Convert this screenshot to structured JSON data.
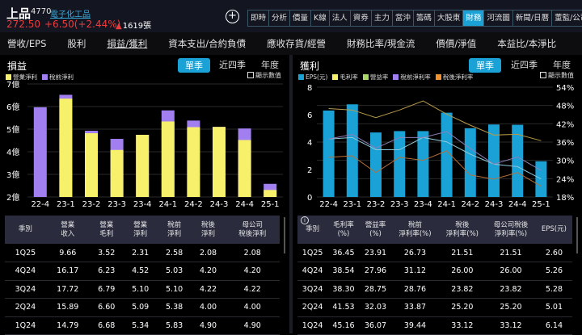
{
  "header": {
    "name": "上品",
    "code": "4770",
    "industry": "電子化工品",
    "price": "272.50",
    "change": "+6.50(+2.44%)",
    "volume": "1619張",
    "plus_icon": "add-icon"
  },
  "tabs": [
    {
      "label": "即時"
    },
    {
      "label": "分析"
    },
    {
      "label": "價量"
    },
    {
      "label": "K線"
    },
    {
      "label": "法人"
    },
    {
      "label": "資券"
    },
    {
      "label": "主力"
    },
    {
      "label": "當沖"
    },
    {
      "label": "籌碼"
    },
    {
      "label": "大股東"
    },
    {
      "label": "財務",
      "active": true
    },
    {
      "label": "河流圖"
    },
    {
      "label": "新聞/日曆"
    },
    {
      "label": "董監/公司"
    }
  ],
  "subtabs": [
    {
      "label": "營收/EPS"
    },
    {
      "label": "股利"
    },
    {
      "label": "損益/獲利",
      "active": true
    },
    {
      "label": "資本支出/合約負債"
    },
    {
      "label": "應收存貨/經營"
    },
    {
      "label": "財務比率/現金流"
    },
    {
      "label": "價價/淨值"
    },
    {
      "label": "本益比/本淨比"
    }
  ],
  "left": {
    "title": "損益",
    "periods": [
      "單季",
      "近四季",
      "年度"
    ],
    "show_values": "顯示數值",
    "legend": [
      {
        "label": "營業淨利",
        "color": "#f7f06a"
      },
      {
        "label": "稅前淨利",
        "color": "#a17ff0"
      }
    ],
    "columns": [
      "季別",
      "營業\n收入",
      "營業\n毛利",
      "營業\n淨利",
      "稅前\n淨利",
      "稅後\n淨利",
      "母公司\n稅後淨利"
    ],
    "rows": [
      [
        "1Q25",
        "9.66",
        "3.52",
        "2.31",
        "2.58",
        "2.08",
        "2.08"
      ],
      [
        "4Q24",
        "16.17",
        "6.23",
        "4.52",
        "5.03",
        "4.20",
        "4.20"
      ],
      [
        "3Q24",
        "17.72",
        "6.79",
        "5.10",
        "5.10",
        "4.22",
        "4.22"
      ],
      [
        "2Q24",
        "15.89",
        "6.60",
        "5.09",
        "5.38",
        "4.00",
        "4.00"
      ],
      [
        "1Q24",
        "14.79",
        "6.68",
        "5.34",
        "5.83",
        "4.90",
        "4.90"
      ]
    ]
  },
  "right": {
    "title": "獲利",
    "periods": [
      "單季",
      "近四季",
      "年度"
    ],
    "show_values": "顯示數值",
    "legend": [
      {
        "label": "EPS(元)",
        "color": "#1aa1d6"
      },
      {
        "label": "毛利率",
        "color": "#f7f06a"
      },
      {
        "label": "營益率",
        "color": "#a8d66a"
      },
      {
        "label": "稅前淨利率",
        "color": "#a17ff0"
      },
      {
        "label": "稅後淨利率",
        "color": "#f0902e"
      }
    ],
    "columns": [
      "季別",
      "毛利率\n(%)",
      "營益率\n(%)",
      "稅前\n淨利率(%)",
      "稅後\n淨利率(%)",
      "母公司稅後\n淨利率(%)",
      "EPS(元)"
    ],
    "rows": [
      [
        "1Q25",
        "36.45",
        "23.91",
        "26.73",
        "21.51",
        "21.51",
        "2.60"
      ],
      [
        "4Q24",
        "38.54",
        "27.96",
        "31.12",
        "26.00",
        "26.00",
        "5.26"
      ],
      [
        "3Q24",
        "38.30",
        "28.75",
        "28.76",
        "23.82",
        "23.82",
        "5.28"
      ],
      [
        "2Q24",
        "41.53",
        "32.03",
        "33.87",
        "25.20",
        "25.20",
        "5.01"
      ],
      [
        "1Q24",
        "45.16",
        "36.07",
        "39.44",
        "33.12",
        "33.12",
        "6.14"
      ]
    ]
  },
  "chart_data": [
    {
      "type": "bar",
      "title": "損益",
      "categories": [
        "22-4",
        "23-1",
        "23-2",
        "23-3",
        "23-4",
        "24-1",
        "24-2",
        "24-3",
        "24-4",
        "25-1"
      ],
      "series": [
        {
          "name": "營業淨利",
          "values": [
            null,
            6.35,
            4.82,
            4.08,
            4.75,
            5.34,
            5.09,
            5.1,
            4.52,
            2.31
          ]
        },
        {
          "name": "稅前淨利",
          "values": [
            5.97,
            6.52,
            4.93,
            4.57,
            4.75,
            5.83,
            5.38,
            5.1,
            5.03,
            2.58
          ]
        }
      ],
      "ylabel": "億",
      "ylim": [
        2,
        7
      ],
      "yticks": [
        "2億",
        "3億",
        "4億",
        "5億",
        "6億",
        "7億"
      ]
    },
    {
      "type": "bar+line",
      "title": "獲利",
      "categories": [
        "22-4",
        "23-1",
        "23-2",
        "23-3",
        "23-4",
        "24-1",
        "24-2",
        "24-3",
        "24-4",
        "25-1"
      ],
      "series": [
        {
          "name": "EPS(元)",
          "axis": "left",
          "values": [
            6.3,
            6.75,
            4.7,
            4.8,
            4.8,
            6.14,
            5.01,
            5.28,
            5.26,
            2.6
          ]
        },
        {
          "name": "毛利率",
          "axis": "right",
          "values": [
            47,
            46.5,
            44,
            46.5,
            49.5,
            45.16,
            41.53,
            38.3,
            38.54,
            36.45
          ]
        },
        {
          "name": "營益率",
          "axis": "right",
          "values": [
            37,
            37.5,
            33.5,
            33.5,
            37.5,
            36.07,
            32.03,
            28.75,
            27.96,
            23.91
          ]
        },
        {
          "name": "稅前淨利率",
          "axis": "right",
          "values": [
            37,
            38.5,
            34,
            37.5,
            37.5,
            39.44,
            33.87,
            28.76,
            31.12,
            26.73
          ]
        },
        {
          "name": "稅後淨利率",
          "axis": "right",
          "values": [
            31,
            31.5,
            26,
            31,
            30,
            33.12,
            25.2,
            23.82,
            26.0,
            21.51
          ]
        }
      ],
      "ylim": [
        0,
        8
      ],
      "y2lim": [
        18,
        54
      ],
      "yticks": [
        "0",
        "2",
        "4",
        "6",
        "8"
      ],
      "y2ticks": [
        "18%",
        "24%",
        "30%",
        "36%",
        "42%",
        "48%",
        "54%"
      ]
    }
  ]
}
